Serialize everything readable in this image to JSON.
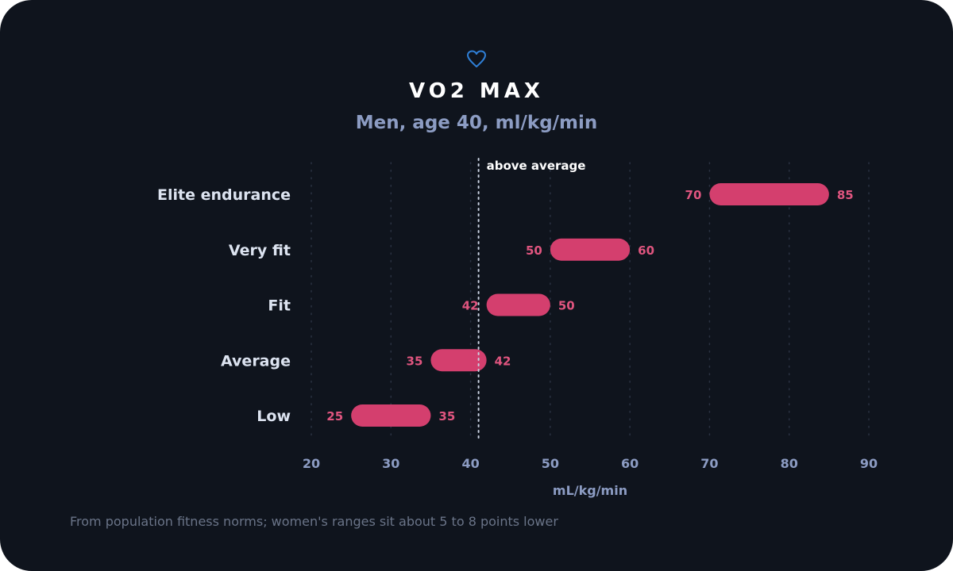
{
  "colors": {
    "background": "#0f141d",
    "bar": "#d43f6e",
    "bar_label": "#e0557f",
    "category_label": "#dce3f0",
    "axis_text": "#8c9cc3",
    "icon": "#2f7fd6",
    "reference_line": "#c8d0e0"
  },
  "icon": "heart-icon",
  "header": {
    "title": "VO2 MAX",
    "subtitle": "Men, age 40, ml/kg/min"
  },
  "chart_data": {
    "type": "bar",
    "orientation": "horizontal-range",
    "categories": [
      "Elite endurance",
      "Very fit",
      "Fit",
      "Average",
      "Low"
    ],
    "ranges": [
      [
        70,
        85
      ],
      [
        50,
        60
      ],
      [
        42,
        50
      ],
      [
        35,
        42
      ],
      [
        25,
        35
      ]
    ],
    "xlabel": "mL/kg/min",
    "xlim": [
      20,
      90
    ],
    "xticks": [
      20,
      30,
      40,
      50,
      60,
      70,
      80,
      90
    ],
    "grid": "vertical dotted",
    "reference": {
      "value": 41,
      "label": "above average"
    }
  },
  "footnote": "From population fitness norms; women's ranges sit about 5 to 8 points lower"
}
